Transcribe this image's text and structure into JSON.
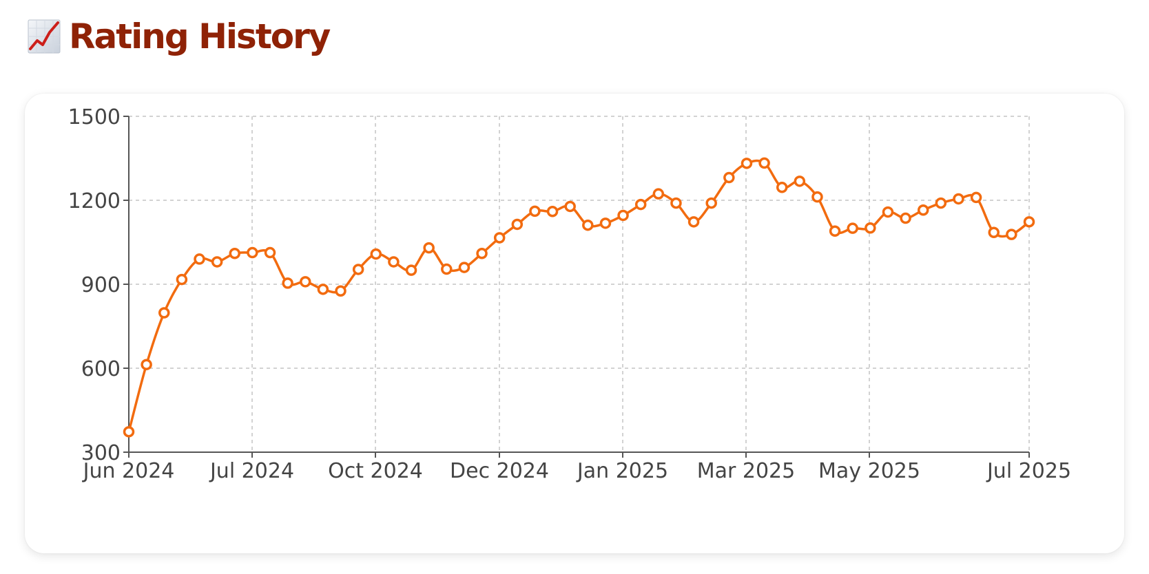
{
  "page": {
    "title": "Rating History",
    "title_icon": "chart-increasing-icon",
    "accent_color": "#8f2206"
  },
  "chart_data": {
    "type": "line",
    "title": "",
    "xlabel": "",
    "ylabel": "",
    "ylim": [
      300,
      1500
    ],
    "yticks": [
      300,
      600,
      900,
      1200,
      1500
    ],
    "ytick_labels": [
      "300",
      "600",
      "900",
      "1200",
      "1500"
    ],
    "xticks": [
      {
        "label": "Jun 2024"
      },
      {
        "label": "Jul 2024"
      },
      {
        "label": "Oct 2024"
      },
      {
        "label": "Dec 2024"
      },
      {
        "label": "Jan 2025"
      },
      {
        "label": "Mar 2025"
      },
      {
        "label": "May 2025"
      },
      {
        "label": "Jul 2025"
      }
    ],
    "grid": true,
    "line_color": "#f26b0f",
    "series": [
      {
        "values": [
          373,
          613,
          798,
          917,
          990,
          980,
          1010,
          1013,
          1013,
          904,
          909,
          882,
          876,
          953,
          1008,
          980,
          950,
          1030,
          954,
          960,
          1010,
          1066,
          1114,
          1161,
          1160,
          1178,
          1111,
          1118,
          1146,
          1185,
          1223,
          1190,
          1123,
          1190,
          1281,
          1332,
          1333,
          1246,
          1268,
          1212,
          1090,
          1100,
          1101,
          1158,
          1136,
          1165,
          1190,
          1205,
          1210,
          1085,
          1078,
          1123
        ]
      }
    ]
  }
}
